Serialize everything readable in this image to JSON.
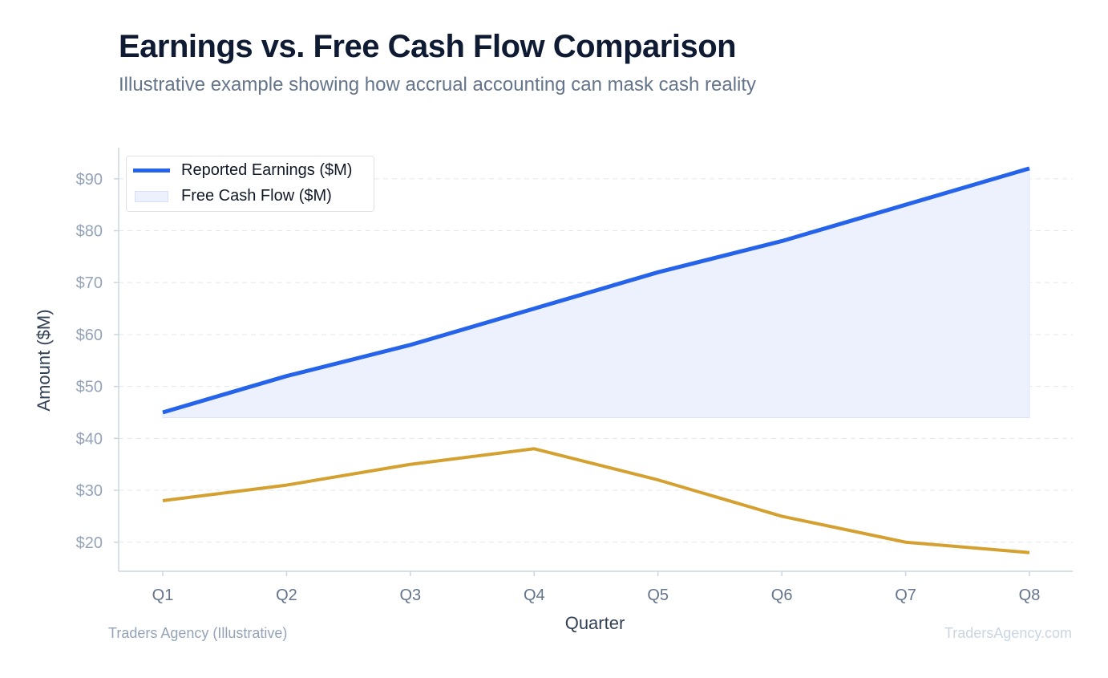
{
  "header": {
    "title": "Earnings vs. Free Cash Flow Comparison",
    "subtitle": "Illustrative example showing how accrual accounting can mask cash reality"
  },
  "footer": {
    "source": "Traders Agency (Illustrative)",
    "watermark": "TradersAgency.com"
  },
  "legend": {
    "earnings_label": "Reported Earnings ($M)",
    "fcf_label": "Free Cash Flow ($M)"
  },
  "colors": {
    "earnings": "#2563eb",
    "fcf": "#d4a030",
    "fill": "#ecf1fd",
    "grid": "#e5e7eb",
    "axis": "#cbd5e1"
  },
  "chart_data": {
    "type": "line",
    "categories": [
      "Q1",
      "Q2",
      "Q3",
      "Q4",
      "Q5",
      "Q6",
      "Q7",
      "Q8"
    ],
    "series": [
      {
        "name": "Reported Earnings ($M)",
        "values": [
          45,
          52,
          58,
          65,
          72,
          78,
          85,
          92
        ]
      },
      {
        "name": "Free Cash Flow ($M)",
        "values": [
          28,
          31,
          35,
          38,
          32,
          25,
          20,
          18
        ]
      }
    ],
    "fill_baseline": 44,
    "title": "Earnings vs. Free Cash Flow Comparison",
    "subtitle": "Illustrative example showing how accrual accounting can mask cash reality",
    "xlabel": "Quarter",
    "ylabel": "Amount ($M)",
    "ylim": [
      14.4,
      96
    ],
    "yticks": [
      20,
      30,
      40,
      50,
      60,
      70,
      80,
      90
    ],
    "ytick_labels": [
      "$20",
      "$30",
      "$40",
      "$50",
      "$60",
      "$70",
      "$80",
      "$90"
    ],
    "grid": true,
    "legend_position": "top-left"
  }
}
